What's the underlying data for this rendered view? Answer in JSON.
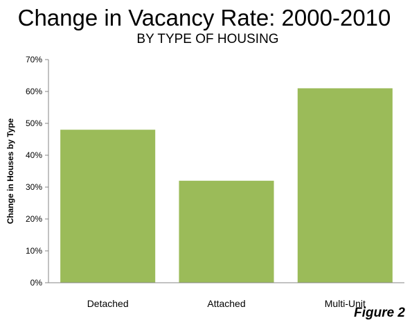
{
  "title": "Change in Vacancy Rate: 2000-2010",
  "subtitle": "BY TYPE OF HOUSING",
  "figure_label": "Figure 2",
  "colors": {
    "bar": "#9bbb59",
    "axis": "#868686",
    "text": "#000000"
  },
  "chart_data": {
    "type": "bar",
    "categories": [
      "Detached",
      "Attached",
      "Multi-Unit"
    ],
    "values": [
      48,
      32,
      61
    ],
    "ylabel": "Change in Houses by Type",
    "xlabel": "",
    "ylim": [
      0,
      70
    ],
    "yticks": [
      "0%",
      "10%",
      "20%",
      "30%",
      "40%",
      "50%",
      "60%",
      "70%"
    ],
    "grid": false,
    "legend": "none"
  }
}
